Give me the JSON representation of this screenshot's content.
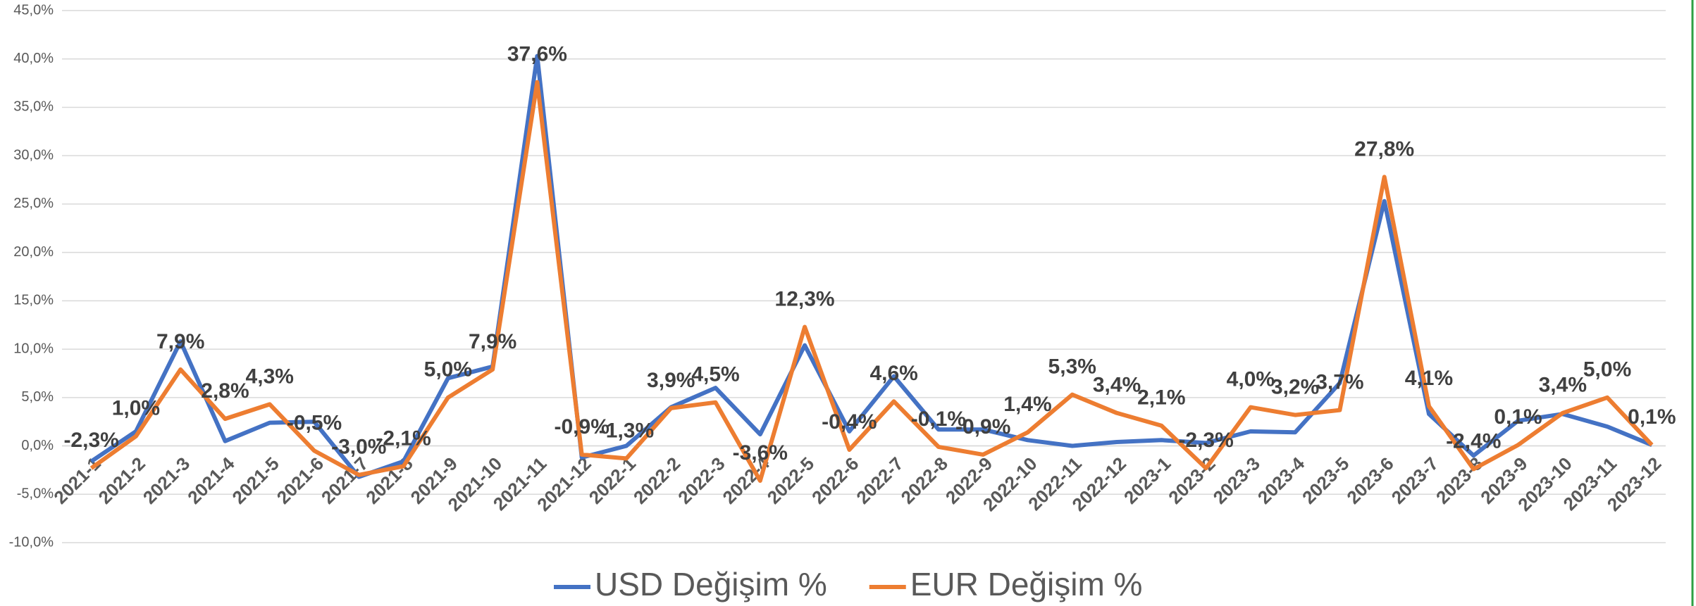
{
  "chart_data": {
    "type": "line",
    "categories": [
      "2021-1",
      "2021-2",
      "2021-3",
      "2021-4",
      "2021-5",
      "2021-6",
      "2021-7",
      "2021-8",
      "2021-9",
      "2021-10",
      "2021-11",
      "2021-12",
      "2022-1",
      "2022-2",
      "2022-3",
      "2022-4",
      "2022-5",
      "2022-6",
      "2022-7",
      "2022-8",
      "2022-9",
      "2022-10",
      "2022-11",
      "2022-12",
      "2023-1",
      "2023-2",
      "2023-3",
      "2023-4",
      "2023-5",
      "2023-6",
      "2023-7",
      "2023-8",
      "2023-9",
      "2023-10",
      "2023-11",
      "2023-12"
    ],
    "series": [
      {
        "name": "USD Değişim %",
        "color": "#4472c4",
        "values": [
          -1.6,
          1.5,
          10.8,
          0.5,
          2.4,
          2.5,
          -3.2,
          -1.6,
          7.0,
          8.2,
          40.3,
          -1.2,
          0.0,
          4.0,
          6.0,
          1.2,
          10.4,
          1.5,
          7.2,
          1.7,
          1.7,
          0.6,
          0.0,
          0.4,
          0.6,
          0.3,
          1.5,
          1.4,
          6.5,
          25.3,
          3.3,
          -1.0,
          2.6,
          3.3,
          2.0,
          0.1
        ]
      },
      {
        "name": "EUR Değişim %",
        "color": "#ed7d31",
        "values": [
          -2.3,
          1.0,
          7.9,
          2.8,
          4.3,
          -0.5,
          -3.0,
          -2.1,
          5.0,
          7.9,
          37.6,
          -0.9,
          -1.3,
          3.9,
          4.5,
          -3.6,
          12.3,
          -0.4,
          4.6,
          -0.1,
          -0.9,
          1.4,
          5.3,
          3.4,
          2.1,
          -2.3,
          4.0,
          3.2,
          3.7,
          27.8,
          4.1,
          -2.4,
          0.1,
          3.4,
          5.0,
          0.1
        ],
        "value_labels": [
          "-2,3%",
          "1,0%",
          "7,9%",
          "2,8%",
          "4,3%",
          "-0,5%",
          "-3,0%",
          "-2,1%",
          "5,0%",
          "7,9%",
          "37,6%",
          "-0,9%",
          "-1,3%",
          "3,9%",
          "4,5%",
          "-3,6%",
          "12,3%",
          "-0,4%",
          "4,6%",
          "-0,1%",
          "-0,9%",
          "1,4%",
          "5,3%",
          "3,4%",
          "2,1%",
          "-2,3%",
          "4,0%",
          "3,2%",
          "3,7%",
          "27,8%",
          "4,1%",
          "-2,4%",
          "0,1%",
          "3,4%",
          "5,0%",
          "0,1%"
        ]
      }
    ],
    "ylim": [
      -10,
      45
    ],
    "yticks": [
      {
        "value": -10,
        "label": "-10,0%"
      },
      {
        "value": -5,
        "label": "-5,0%"
      },
      {
        "value": 0,
        "label": "0,0%"
      },
      {
        "value": 5,
        "label": "5,0%"
      },
      {
        "value": 10,
        "label": "10,0%"
      },
      {
        "value": 15,
        "label": "15,0%"
      },
      {
        "value": 20,
        "label": "20,0%"
      },
      {
        "value": 25,
        "label": "25,0%"
      },
      {
        "value": 30,
        "label": "30,0%"
      },
      {
        "value": 35,
        "label": "35,0%"
      },
      {
        "value": 40,
        "label": "40,0%"
      },
      {
        "value": 45,
        "label": "45,0%"
      }
    ],
    "grid": true,
    "legend": "bottom"
  }
}
